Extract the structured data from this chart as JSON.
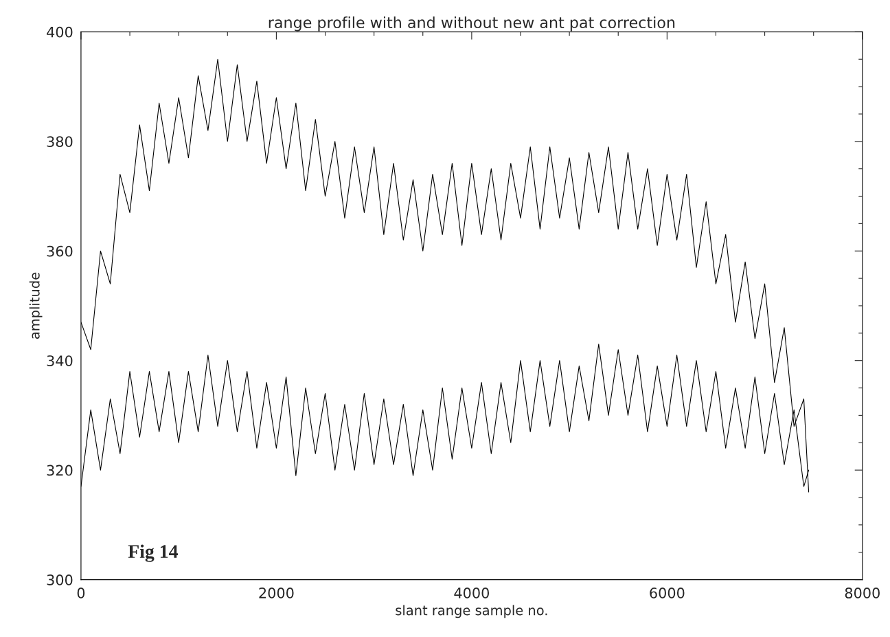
{
  "chart_data": {
    "type": "line",
    "title": "range profile with and without new ant pat correction",
    "xlabel": "slant range sample no.",
    "ylabel": "amplitude",
    "annotations": [
      "Fig 14"
    ],
    "x": [
      0,
      100,
      200,
      300,
      400,
      500,
      600,
      700,
      800,
      900,
      1000,
      1100,
      1200,
      1300,
      1400,
      1500,
      1600,
      1700,
      1800,
      1900,
      2000,
      2100,
      2200,
      2300,
      2400,
      2500,
      2600,
      2700,
      2800,
      2900,
      3000,
      3100,
      3200,
      3300,
      3400,
      3500,
      3600,
      3700,
      3800,
      3900,
      4000,
      4100,
      4200,
      4300,
      4400,
      4500,
      4600,
      4700,
      4800,
      4900,
      5000,
      5100,
      5200,
      5300,
      5400,
      5500,
      5600,
      5700,
      5800,
      5900,
      6000,
      6100,
      6200,
      6300,
      6400,
      6500,
      6600,
      6700,
      6800,
      6900,
      7000,
      7100,
      7200,
      7300,
      7400,
      7450
    ],
    "series": [
      {
        "color": "#000000",
        "values": [
          347,
          342,
          360,
          354,
          374,
          367,
          383,
          371,
          387,
          376,
          388,
          377,
          392,
          382,
          395,
          380,
          394,
          380,
          391,
          376,
          388,
          375,
          387,
          371,
          384,
          370,
          380,
          366,
          379,
          367,
          379,
          363,
          376,
          362,
          373,
          360,
          374,
          363,
          376,
          361,
          376,
          363,
          375,
          362,
          376,
          366,
          379,
          364,
          379,
          366,
          377,
          364,
          378,
          367,
          379,
          364,
          378,
          364,
          375,
          361,
          374,
          362,
          374,
          357,
          369,
          354,
          363,
          347,
          358,
          344,
          354,
          336,
          346,
          328,
          333,
          316
        ]
      },
      {
        "color": "#000000",
        "values": [
          317,
          331,
          320,
          333,
          323,
          338,
          326,
          338,
          327,
          338,
          325,
          338,
          327,
          341,
          328,
          340,
          327,
          338,
          324,
          336,
          324,
          337,
          319,
          335,
          323,
          334,
          320,
          332,
          320,
          334,
          321,
          333,
          321,
          332,
          319,
          331,
          320,
          335,
          322,
          335,
          324,
          336,
          323,
          336,
          325,
          340,
          327,
          340,
          328,
          340,
          327,
          339,
          329,
          343,
          330,
          342,
          330,
          341,
          327,
          339,
          328,
          341,
          328,
          340,
          327,
          338,
          324,
          335,
          324,
          337,
          323,
          334,
          321,
          331,
          317,
          320
        ]
      }
    ],
    "xlim": [
      0,
      8000
    ],
    "xticks": [
      0,
      {
        "value": 500,
        "label": null
      },
      {
        "value": 1000,
        "label": null
      },
      {
        "value": 1500,
        "label": null
      },
      2000,
      {
        "value": 2500,
        "label": null
      },
      {
        "value": 3000,
        "label": null
      },
      {
        "value": 3500,
        "label": null
      },
      4000,
      {
        "value": 4500,
        "label": null
      },
      {
        "value": 5000,
        "label": null
      },
      {
        "value": 5500,
        "label": null
      },
      6000,
      {
        "value": 6500,
        "label": null
      },
      {
        "value": 7000,
        "label": null
      },
      {
        "value": 7500,
        "label": null
      },
      8000
    ],
    "ylim": [
      300,
      400
    ],
    "yticks": [
      300,
      {
        "value": 305,
        "label": null
      },
      {
        "value": 310,
        "label": null
      },
      {
        "value": 315,
        "label": null
      },
      320,
      {
        "value": 325,
        "label": null
      },
      {
        "value": 330,
        "label": null
      },
      {
        "value": 335,
        "label": null
      },
      340,
      {
        "value": 345,
        "label": null
      },
      {
        "value": 350,
        "label": null
      },
      {
        "value": 355,
        "label": null
      },
      360,
      {
        "value": 365,
        "label": null
      },
      {
        "value": 370,
        "label": null
      },
      {
        "value": 375,
        "label": null
      },
      380,
      {
        "value": 385,
        "label": null
      },
      {
        "value": 390,
        "label": null
      },
      {
        "value": 395,
        "label": null
      },
      400
    ],
    "grid": false,
    "legend": false,
    "marker": "none",
    "line_style": "solid"
  }
}
